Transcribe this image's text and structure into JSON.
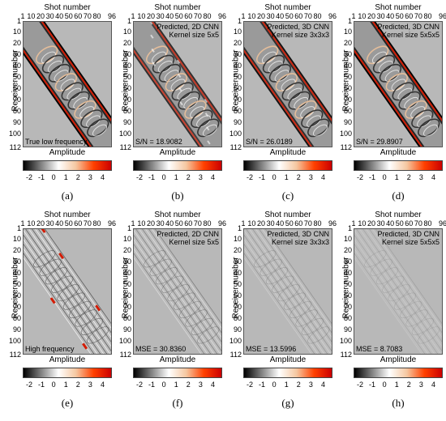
{
  "colors": {
    "background": "#b8b8b8",
    "colormap": [
      "#000000",
      "#808080",
      "#ffffff",
      "#f5c7a0",
      "#ff4000",
      "#cc0000"
    ]
  },
  "axes": {
    "x_title": "Shot number",
    "x_ticks": [
      "1",
      "10",
      "20",
      "30",
      "40",
      "50",
      "60",
      "70",
      "80",
      "96"
    ],
    "y_title": "Receiver number",
    "y_ticks": [
      "1",
      "10",
      "20",
      "30",
      "40",
      "50",
      "60",
      "70",
      "80",
      "90",
      "100",
      "112"
    ],
    "colorbar_title": "Amplitude",
    "colorbar_ticks": [
      "-2",
      "-1",
      "0",
      "1",
      "2",
      "3",
      "4"
    ]
  },
  "panels": [
    {
      "label": "(a)",
      "caption_top": [],
      "caption_bottom": "True low frequency"
    },
    {
      "label": "(b)",
      "caption_top": [
        "Predicted, 2D CNN",
        "Kernel size 5x5"
      ],
      "caption_bottom": "S/N = 18.9082"
    },
    {
      "label": "(c)",
      "caption_top": [
        "Predicted, 3D CNN",
        "Kernel size 3x3x3"
      ],
      "caption_bottom": "S/N = 26.0189"
    },
    {
      "label": "(d)",
      "caption_top": [
        "Predicted, 3D CNN",
        "Kernel size 5x5x5"
      ],
      "caption_bottom": "S/N = 29.8907"
    },
    {
      "label": "(e)",
      "caption_top": [],
      "caption_bottom": "High frequency"
    },
    {
      "label": "(f)",
      "caption_top": [
        "Predicted, 2D CNN",
        "Kernel size 5x5"
      ],
      "caption_bottom": "MSE = 30.8360"
    },
    {
      "label": "(g)",
      "caption_top": [
        "Predicted, 3D CNN",
        "Kernel size 3x3x3"
      ],
      "caption_bottom": "MSE = 13.5996"
    },
    {
      "label": "(h)",
      "caption_top": [
        "Predicted, 3D CNN",
        "Kernel size 5x5x5"
      ],
      "caption_bottom": "MSE = 8.7083"
    }
  ]
}
